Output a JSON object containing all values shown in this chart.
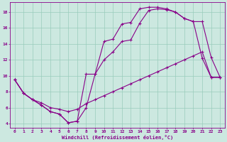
{
  "xlabel": "Windchill (Refroidissement éolien,°C)",
  "bg_color": "#cce8e0",
  "grid_color": "#99ccbb",
  "line_color": "#880088",
  "line1_x": [
    0,
    1,
    2,
    3,
    4,
    5,
    6,
    7,
    8,
    9,
    10,
    11,
    12,
    13,
    14,
    15,
    16,
    17,
    18,
    19,
    20,
    21,
    22,
    23
  ],
  "line1_y": [
    9.5,
    7.8,
    7.0,
    6.3,
    5.5,
    5.2,
    4.1,
    4.3,
    6.0,
    10.2,
    14.3,
    14.6,
    16.5,
    16.7,
    18.4,
    18.6,
    18.6,
    18.4,
    18.0,
    17.2,
    16.8,
    12.2,
    9.8,
    9.8
  ],
  "line2_x": [
    0,
    1,
    2,
    3,
    4,
    5,
    6,
    7,
    8,
    9,
    10,
    11,
    12,
    13,
    14,
    15,
    16,
    17,
    18,
    19,
    20,
    21,
    22,
    23
  ],
  "line2_y": [
    9.5,
    7.8,
    7.0,
    6.6,
    6.0,
    5.8,
    5.5,
    5.8,
    6.5,
    7.0,
    7.5,
    8.0,
    8.5,
    9.0,
    9.5,
    10.0,
    10.5,
    11.0,
    11.5,
    12.0,
    12.5,
    13.0,
    9.8,
    9.8
  ],
  "line3_x": [
    0,
    1,
    2,
    3,
    4,
    5,
    6,
    7,
    8,
    9,
    10,
    11,
    12,
    13,
    14,
    15,
    16,
    17,
    18,
    19,
    20,
    21,
    22,
    23
  ],
  "line3_y": [
    9.5,
    7.8,
    7.0,
    6.3,
    5.5,
    5.2,
    4.1,
    4.3,
    10.2,
    10.2,
    12.0,
    13.0,
    14.3,
    14.5,
    16.6,
    18.2,
    18.4,
    18.3,
    18.0,
    17.2,
    16.8,
    16.8,
    12.3,
    9.8
  ],
  "xlim": [
    -0.5,
    23.5
  ],
  "ylim": [
    3.5,
    19.2
  ],
  "yticks": [
    4,
    6,
    8,
    10,
    12,
    14,
    16,
    18
  ],
  "xticks": [
    0,
    1,
    2,
    3,
    4,
    5,
    6,
    7,
    8,
    9,
    10,
    11,
    12,
    13,
    14,
    15,
    16,
    17,
    18,
    19,
    20,
    21,
    22,
    23
  ],
  "tick_fontsize": 4.5,
  "xlabel_fontsize": 5.0
}
